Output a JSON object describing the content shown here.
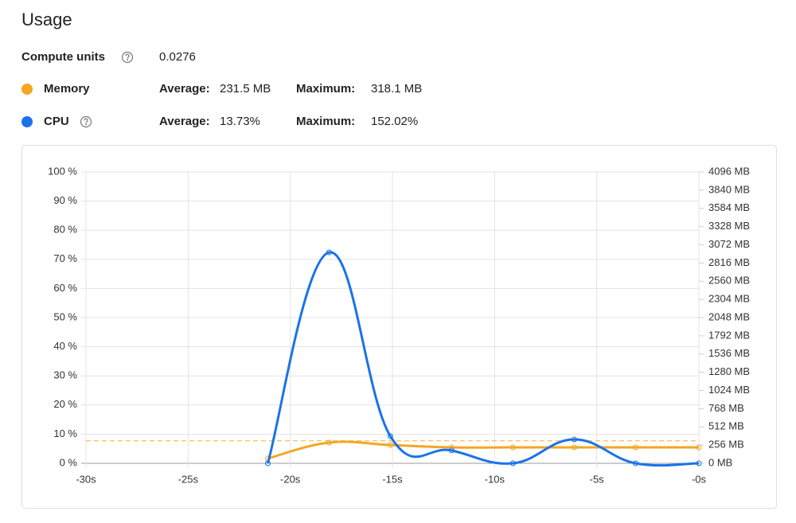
{
  "title": "Usage",
  "stats": {
    "compute_units": {
      "label": "Compute units",
      "value": "0.0276"
    },
    "memory": {
      "average_label": "Average:",
      "average": "231.5 MB",
      "maximum_label": "Maximum:",
      "maximum": "318.1 MB"
    },
    "cpu": {
      "average_label": "Average:",
      "average": "13.73%",
      "maximum_label": "Maximum:",
      "maximum": "152.02%"
    }
  },
  "chart_data": {
    "type": "line",
    "x": [
      -21.1,
      -18.1,
      -15.1,
      -12.1,
      -9.1,
      -6.1,
      -3.1,
      0
    ],
    "series": [
      {
        "name": "Memory",
        "color": "#f5a623",
        "axis": "y2",
        "values": [
          67,
          291,
          257,
          224,
          224,
          224,
          224,
          224
        ]
      },
      {
        "name": "CPU",
        "color": "#1a73e8",
        "values": [
          0,
          72.4,
          9.3,
          4.4,
          0,
          8.2,
          0,
          0
        ]
      }
    ],
    "reference_lines": [
      {
        "axis": "y2",
        "value": 318.1,
        "color": "#f5c76a",
        "dashed": true
      }
    ],
    "xlim": [
      -30,
      0
    ],
    "xticks": [
      {
        "value": -30,
        "label": "-30s"
      },
      {
        "value": -25,
        "label": "-25s"
      },
      {
        "value": -20,
        "label": "-20s"
      },
      {
        "value": -15,
        "label": "-15s"
      },
      {
        "value": -10,
        "label": "-10s"
      },
      {
        "value": -5,
        "label": "-5s"
      },
      {
        "value": 0,
        "label": "-0s"
      }
    ],
    "ylim": [
      0,
      100
    ],
    "yticks": [
      {
        "value": 0,
        "label": "0 %"
      },
      {
        "value": 10,
        "label": "10 %"
      },
      {
        "value": 20,
        "label": "20 %"
      },
      {
        "value": 30,
        "label": "30 %"
      },
      {
        "value": 40,
        "label": "40 %"
      },
      {
        "value": 50,
        "label": "50 %"
      },
      {
        "value": 60,
        "label": "60 %"
      },
      {
        "value": 70,
        "label": "70 %"
      },
      {
        "value": 80,
        "label": "80 %"
      },
      {
        "value": 90,
        "label": "90 %"
      },
      {
        "value": 100,
        "label": "100 %"
      }
    ],
    "y2lim": [
      0,
      4096
    ],
    "y2ticks": [
      {
        "value": 0,
        "label": "0 MB"
      },
      {
        "value": 256,
        "label": "256 MB"
      },
      {
        "value": 512,
        "label": "512 MB"
      },
      {
        "value": 768,
        "label": "768 MB"
      },
      {
        "value": 1024,
        "label": "1024 MB"
      },
      {
        "value": 1280,
        "label": "1280 MB"
      },
      {
        "value": 1536,
        "label": "1536 MB"
      },
      {
        "value": 1792,
        "label": "1792 MB"
      },
      {
        "value": 2048,
        "label": "2048 MB"
      },
      {
        "value": 2304,
        "label": "2304 MB"
      },
      {
        "value": 2560,
        "label": "2560 MB"
      },
      {
        "value": 2816,
        "label": "2816 MB"
      },
      {
        "value": 3072,
        "label": "3072 MB"
      },
      {
        "value": 3328,
        "label": "3328 MB"
      },
      {
        "value": 3584,
        "label": "3584 MB"
      },
      {
        "value": 3840,
        "label": "3840 MB"
      },
      {
        "value": 4096,
        "label": "4096 MB"
      }
    ],
    "grid": true
  }
}
